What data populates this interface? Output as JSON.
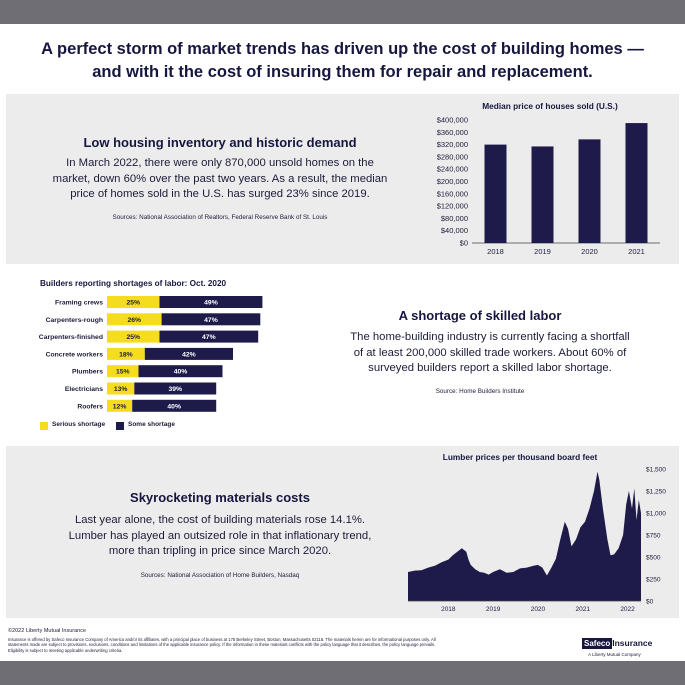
{
  "headline": {
    "line1": "A perfect storm of market trends has driven up the cost of building homes —",
    "line2": "and with it the cost of insuring them for repair and replacement."
  },
  "section1": {
    "title": "Low housing inventory and historic demand",
    "body_line1": "In March 2022, there were only 870,000 unsold homes on the",
    "body_line2": "market, down 60% over the past two years. As a result, the median",
    "body_line3": "price of homes sold in the U.S. has surged 23% since 2019.",
    "sources": "Sources: National Association of Realtors, Federal Reserve Bank of St. Louis"
  },
  "section2": {
    "title": "A shortage of skilled labor",
    "body_line1": "The home-building industry is currently facing a shortfall",
    "body_line2": "of at least 200,000 skilled trade workers. About 60% of",
    "body_line3": "surveyed builders report a skilled labor shortage.",
    "sources": "Source: Home Builders Institute"
  },
  "section3": {
    "title": "Skyrocketing materials costs",
    "body_line1": "Last year alone, the cost of building materials rose 14.1%.",
    "body_line2": "Lumber has played an outsized role in that inflationary trend,",
    "body_line3": "more than tripling in price since March 2020.",
    "sources": "Sources: National Association of Home Builders, Nasdaq"
  },
  "colors": {
    "navy": "#1e1b4b",
    "yellow": "#f5dc1e",
    "band": "#ececec",
    "bar_gray": "#6e6e74"
  },
  "chart_data": [
    {
      "type": "bar",
      "title": "Median price of houses sold (U.S.)",
      "categories": [
        "2018",
        "2019",
        "2020",
        "2021"
      ],
      "values": [
        320000,
        314000,
        337000,
        390000
      ],
      "ylim": [
        0,
        400000
      ],
      "yticks": [
        0,
        40000,
        80000,
        120000,
        160000,
        200000,
        240000,
        280000,
        320000,
        360000,
        400000
      ],
      "ytick_labels": [
        "$0",
        "$40,000",
        "$80,000",
        "$120,000",
        "$160,000",
        "$200,000",
        "$240,000",
        "$280,000",
        "$320,000",
        "$360,000",
        "$400,000"
      ]
    },
    {
      "type": "bar",
      "orientation": "horizontal-stacked",
      "title": "Builders reporting shortages of labor: Oct. 2020",
      "categories": [
        "Framing crews",
        "Carpenters-rough",
        "Carpenters-finished",
        "Concrete workers",
        "Plumbers",
        "Electricians",
        "Roofers"
      ],
      "series": [
        {
          "name": "Serious shortage",
          "values": [
            25,
            26,
            25,
            18,
            15,
            13,
            12
          ],
          "labels": [
            "25%",
            "26%",
            "25%",
            "18%",
            "15%",
            "13%",
            "12%"
          ]
        },
        {
          "name": "Some shortage",
          "values": [
            49,
            47,
            47,
            42,
            40,
            39,
            40
          ],
          "labels": [
            "49%",
            "47%",
            "47%",
            "42%",
            "40%",
            "39%",
            "40%"
          ]
        }
      ],
      "legend": {
        "serious": "Serious shortage",
        "some": "Some shortage"
      }
    },
    {
      "type": "area",
      "title": "Lumber prices per thousand board feet",
      "ylim": [
        0,
        1500
      ],
      "yticks": [
        0,
        250,
        500,
        750,
        1000,
        1250,
        1500
      ],
      "ytick_labels": [
        "$0",
        "$250",
        "$500",
        "$750",
        "$1,000",
        "$1,250",
        "$1,500"
      ],
      "xtick_labels": [
        "2018",
        "2019",
        "2020",
        "2021",
        "2022"
      ],
      "xticks": [
        2018.0,
        2019.0,
        2020.0,
        2021.0,
        2022.0
      ],
      "xlim": [
        2017.1,
        2022.3
      ],
      "x": [
        2017.1,
        2017.25,
        2017.4,
        2017.55,
        2017.7,
        2017.85,
        2018.0,
        2018.1,
        2018.2,
        2018.3,
        2018.4,
        2018.45,
        2018.5,
        2018.6,
        2018.7,
        2018.8,
        2018.9,
        2019.0,
        2019.15,
        2019.3,
        2019.45,
        2019.6,
        2019.75,
        2019.9,
        2020.0,
        2020.1,
        2020.2,
        2020.3,
        2020.4,
        2020.5,
        2020.6,
        2020.67,
        2020.75,
        2020.85,
        2020.95,
        2021.05,
        2021.15,
        2021.25,
        2021.33,
        2021.37,
        2021.45,
        2021.55,
        2021.62,
        2021.7,
        2021.8,
        2021.9,
        2021.97,
        2022.03,
        2022.1,
        2022.15,
        2022.2,
        2022.25,
        2022.3
      ],
      "values": [
        330,
        345,
        350,
        380,
        400,
        440,
        470,
        520,
        560,
        600,
        560,
        470,
        410,
        360,
        330,
        320,
        300,
        330,
        360,
        320,
        330,
        370,
        380,
        400,
        410,
        380,
        290,
        380,
        480,
        700,
        900,
        820,
        620,
        700,
        840,
        900,
        1050,
        1250,
        1470,
        1380,
        1050,
        700,
        520,
        530,
        600,
        750,
        1100,
        1250,
        1050,
        1280,
        920,
        1150,
        1000
      ]
    }
  ],
  "footer": {
    "copyright": "©2022 Liberty Mutual Insurance",
    "legal": "Insurance is offered by Safeco Insurance Company of America and/or its affiliates, with a principal place of business at 175 Berkeley Street, Boston, Massachusetts 02116. The materials herein are for informational purposes only. All statements made are subject to provisions, exclusions, conditions and limitations of the applicable insurance policy. If the information in these materials conflicts with the policy language that it describes, the policy language prevails. Eligibility is subject to meeting applicable underwriting criteria.",
    "logo_brand": "Safeco",
    "logo_word": "Insurance",
    "logo_sub": "A Liberty Mutual Company"
  }
}
